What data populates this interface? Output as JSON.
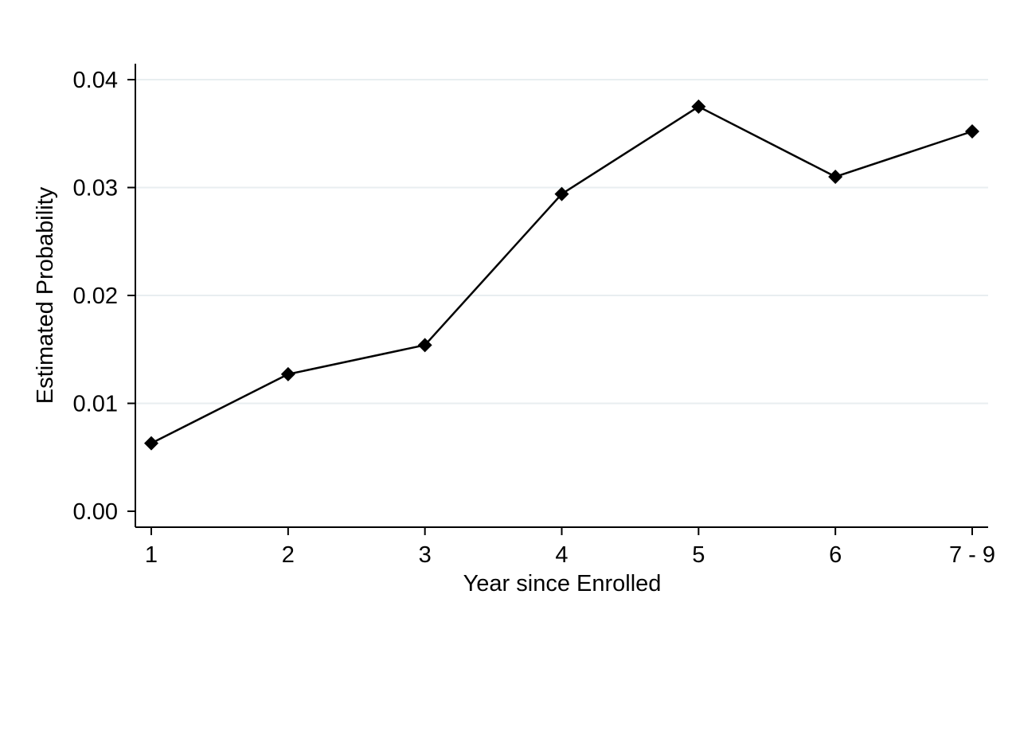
{
  "chart_data": {
    "type": "line",
    "title": "",
    "xlabel": "Year since Enrolled",
    "ylabel": "Estimated Probability",
    "categories": [
      "1",
      "2",
      "3",
      "4",
      "5",
      "6",
      "7 - 9"
    ],
    "series": [
      {
        "values": [
          0.0063,
          0.0127,
          0.0154,
          0.0294,
          0.0375,
          0.031,
          0.0352
        ],
        "color": "#000000",
        "marker": "diamond"
      }
    ],
    "ylim": [
      0,
      0.04
    ],
    "yticks": [
      0,
      0.01,
      0.02,
      0.03,
      0.04
    ],
    "ytick_labels": [
      "0.00",
      "0.01",
      "0.02",
      "0.03",
      "0.04"
    ],
    "grid": true,
    "legend": "none"
  }
}
